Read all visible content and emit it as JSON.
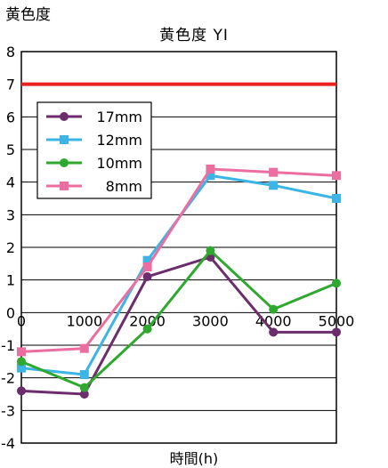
{
  "chart_data": {
    "type": "line",
    "title": "黄色度 YI",
    "ylabel": "黄色度",
    "xlabel": "時間(h)",
    "x": [
      0,
      1000,
      2000,
      3000,
      4000,
      5000
    ],
    "xlim": [
      0,
      5000
    ],
    "ylim": [
      -4,
      8
    ],
    "xticks": [
      "0",
      "1000",
      "2000",
      "3000",
      "4000",
      "5000"
    ],
    "yticks": [
      "-4",
      "-3",
      "-2",
      "-1",
      "0",
      "1",
      "2",
      "3",
      "4",
      "5",
      "6",
      "7",
      "8"
    ],
    "grid": "horizontal",
    "legend_position": "top-left",
    "reference_line": {
      "y": 7,
      "color": "#e8231f"
    },
    "series": [
      {
        "name": "17mm",
        "color": "#6b2d6b",
        "marker": "circle",
        "values": [
          -2.4,
          -2.5,
          1.1,
          1.7,
          -0.6,
          -0.6
        ]
      },
      {
        "name": "12mm",
        "color": "#3cb4e6",
        "marker": "square",
        "values": [
          -1.7,
          -1.9,
          1.6,
          4.2,
          3.9,
          3.5
        ]
      },
      {
        "name": "10mm",
        "color": "#2ea82e",
        "marker": "circle",
        "values": [
          -1.5,
          -2.3,
          -0.5,
          1.9,
          0.1,
          0.9
        ]
      },
      {
        "name": "8mm",
        "color": "#ec6ea0",
        "marker": "square",
        "values": [
          -1.2,
          -1.1,
          1.4,
          4.4,
          4.3,
          4.2
        ]
      }
    ]
  }
}
